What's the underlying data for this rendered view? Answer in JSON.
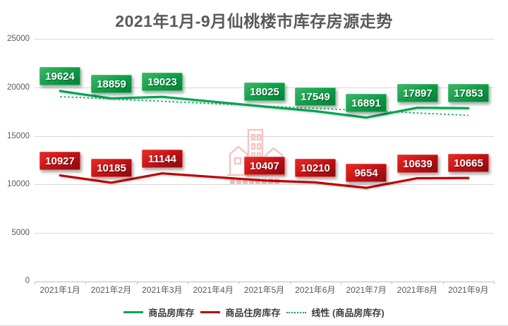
{
  "chart_data": {
    "type": "line",
    "title": "2021年1月-9月仙桃楼市库存房源走势",
    "categories": [
      "2021年1月",
      "2021年2月",
      "2021年3月",
      "2021年4月",
      "2021年5月",
      "2021年6月",
      "2021年7月",
      "2021年8月",
      "2021年9月"
    ],
    "ytick_labels": [
      "25000",
      "20000",
      "15000",
      "10000",
      "5000",
      "0"
    ],
    "ylim": [
      0,
      25000
    ],
    "grid": true,
    "legend_position": "bottom",
    "series": [
      {
        "name": "商品房库存",
        "type": "line",
        "style": "solid",
        "color": "#00A550",
        "data_labels": true,
        "values": [
          19624,
          18859,
          19023,
          null,
          18025,
          17549,
          16891,
          17897,
          17853
        ]
      },
      {
        "name": "商品住房库存",
        "type": "line",
        "style": "solid",
        "color": "#C00000",
        "data_labels": true,
        "values": [
          10927,
          10185,
          11144,
          null,
          10407,
          10210,
          9654,
          10639,
          10665
        ]
      },
      {
        "name": "线性 (商品房库存)",
        "type": "trendline",
        "style": "dotted",
        "color": "#00A550",
        "endpoints": [
          19050,
          17120
        ]
      }
    ],
    "colors": {
      "green": "#00A550",
      "red": "#C00000",
      "grid": "#d9d9d9",
      "axis_text": "#595959"
    }
  },
  "icons": {
    "watermark": "buildings-watermark"
  }
}
